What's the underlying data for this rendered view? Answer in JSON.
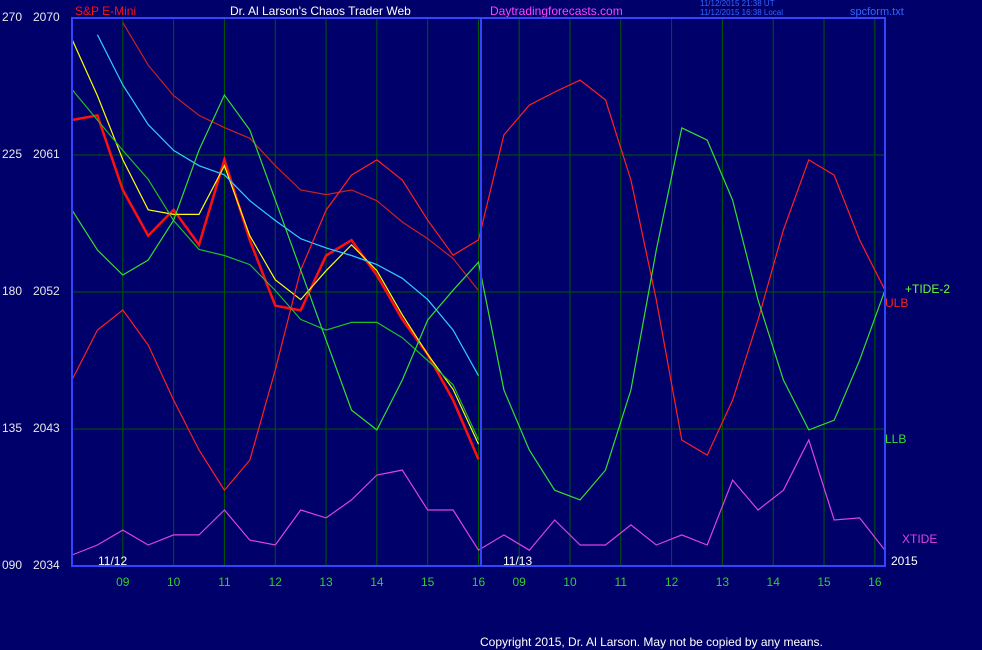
{
  "chart_data": {
    "type": "line",
    "title": "Dr. Al Larson's Chaos Trader Web",
    "subtitle": "Daytradingforecasts.com",
    "timestamps": [
      "11/12/2015 21:38 UT",
      "11/12/2015 16:38 Local"
    ],
    "file": "spcform.txt",
    "copyright": "Copyright 2015, Dr. Al Larson. May not be copied by any means.",
    "annotations": [
      "11/12",
      "11/13",
      "2015",
      "+TIDE-2"
    ],
    "x": [
      8,
      8.5,
      9,
      9.5,
      10,
      10.5,
      11,
      11.5,
      12,
      12.5,
      13,
      13.5,
      14,
      14.5,
      15,
      15.5,
      16,
      16.5,
      17,
      17.5,
      18,
      18.5,
      19,
      19.5,
      20,
      20.5,
      21,
      21.5,
      22,
      22.5,
      23,
      23.5,
      24
    ],
    "xlim": [
      8,
      24
    ],
    "xticks": [
      {
        "value": 9,
        "label": "09"
      },
      10,
      11,
      12,
      13,
      14,
      15,
      16,
      {
        "value": 16.8,
        "label": "09"
      },
      {
        "value": 17.8,
        "label": "10"
      },
      {
        "value": 18.8,
        "label": "11"
      },
      {
        "value": 19.8,
        "label": "12"
      },
      {
        "value": 20.8,
        "label": "13"
      },
      {
        "value": 21.8,
        "label": "14"
      },
      {
        "value": 22.8,
        "label": "15"
      },
      {
        "value": 23.8,
        "label": "16"
      }
    ],
    "ylim": [
      2034,
      2070
    ],
    "yticks": [
      2034,
      2043,
      2052,
      2061,
      2070
    ],
    "y2lim": [
      90,
      270
    ],
    "y2ticks": [
      {
        "value": 90,
        "label": "090"
      },
      135,
      180,
      225,
      270
    ],
    "grid": true,
    "series": [
      {
        "name": "S&P E-Mini",
        "color": "#ff1010",
        "values": [
          2063.3,
          2063.6,
          2058.7,
          2055.7,
          2057.4,
          2055.1,
          2060.7,
          2055.4,
          2051.1,
          2050.8,
          2054.4,
          2055.4,
          2053.1,
          2050.2,
          2047.9,
          2044.9,
          2041.0,
          null,
          null,
          null,
          null,
          null,
          null,
          null,
          null,
          null,
          null,
          null,
          null,
          null,
          null,
          null,
          null
        ]
      },
      {
        "color": "#ffff00",
        "values": [
          2068.6,
          2064.9,
          2060.7,
          2057.4,
          2057.1,
          2057.1,
          2060.3,
          2055.7,
          2052.8,
          2051.5,
          2053.4,
          2055.1,
          2053.4,
          2050.5,
          2047.9,
          2045.6,
          2042.0,
          null,
          null,
          null,
          null,
          null,
          null,
          null,
          null,
          null,
          null,
          null,
          null,
          null,
          null,
          null,
          null
        ]
      },
      {
        "color": "#33ccff",
        "values": [
          null,
          2068.9,
          2065.6,
          2063.0,
          2061.3,
          2060.3,
          2059.7,
          2058.0,
          2056.7,
          2055.5,
          2054.9,
          2054.4,
          2053.8,
          2052.9,
          2051.5,
          2049.5,
          2046.5,
          null,
          null,
          null,
          null,
          null,
          null,
          null,
          null,
          null,
          null,
          null,
          null,
          null,
          null,
          null,
          null
        ]
      },
      {
        "color": "#cc2020",
        "values": [
          null,
          null,
          2069.7,
          2066.9,
          2064.9,
          2063.6,
          2062.8,
          2062.1,
          2060.3,
          2058.7,
          2058.4,
          2058.7,
          2058.0,
          2056.6,
          2055.5,
          2054.2,
          2052.1,
          null,
          null,
          null,
          null,
          null,
          null,
          null,
          null,
          null,
          null,
          null,
          null,
          null,
          null,
          null,
          null
        ]
      },
      {
        "color": "#22bb22",
        "values": [
          2065.3,
          2063.3,
          2061.3,
          2059.4,
          2056.7,
          2054.8,
          2054.4,
          2053.8,
          2052.1,
          2050.2,
          2049.5,
          2050.0,
          2050.0,
          2049.0,
          2047.5,
          2045.9,
          2042.3,
          null,
          null,
          null,
          null,
          null,
          null,
          null,
          null,
          null,
          null,
          null,
          null,
          null,
          null,
          null,
          null
        ]
      },
      {
        "name": "ULB",
        "color": "#ff2020",
        "axis": "y2",
        "values": [
          151.1,
          167.5,
          174.1,
          162.6,
          144.5,
          128.1,
          114.9,
          124.8,
          154.4,
          187.2,
          206.9,
          218.4,
          223.4,
          216.8,
          203.6,
          192.1,
          197.1,
          231.6,
          241.4,
          245.7,
          249.6,
          243.1,
          216.8,
          177.4,
          131.4,
          126.4,
          144.5,
          170.8,
          200.4,
          223.4,
          218.4,
          197.1,
          180.6
        ]
      },
      {
        "name": "LLB",
        "color": "#33dd33",
        "axis": "y2",
        "values": [
          206.9,
          193.8,
          185.6,
          190.5,
          203.6,
          226.6,
          244.7,
          233.2,
          210.2,
          187.2,
          164.2,
          141.2,
          134.7,
          151.1,
          170.8,
          180.6,
          189.8,
          147.8,
          128.1,
          114.9,
          111.7,
          121.5,
          147.8,
          193.8,
          233.9,
          229.9,
          210.2,
          177.4,
          151.1,
          134.7,
          137.9,
          157.6,
          180.6
        ]
      },
      {
        "name": "XTIDE",
        "color": "#dd44dd",
        "axis": "y2",
        "values": [
          93.6,
          96.9,
          101.8,
          96.9,
          100.2,
          100.2,
          108.4,
          98.5,
          96.9,
          108.4,
          105.8,
          111.7,
          119.9,
          121.5,
          108.4,
          108.4,
          95.2,
          100.2,
          95.2,
          105.1,
          96.9,
          96.9,
          103.5,
          96.9,
          100.2,
          96.9,
          118.2,
          108.4,
          114.9,
          131.4,
          105.1,
          105.8,
          95.2
        ]
      }
    ]
  }
}
